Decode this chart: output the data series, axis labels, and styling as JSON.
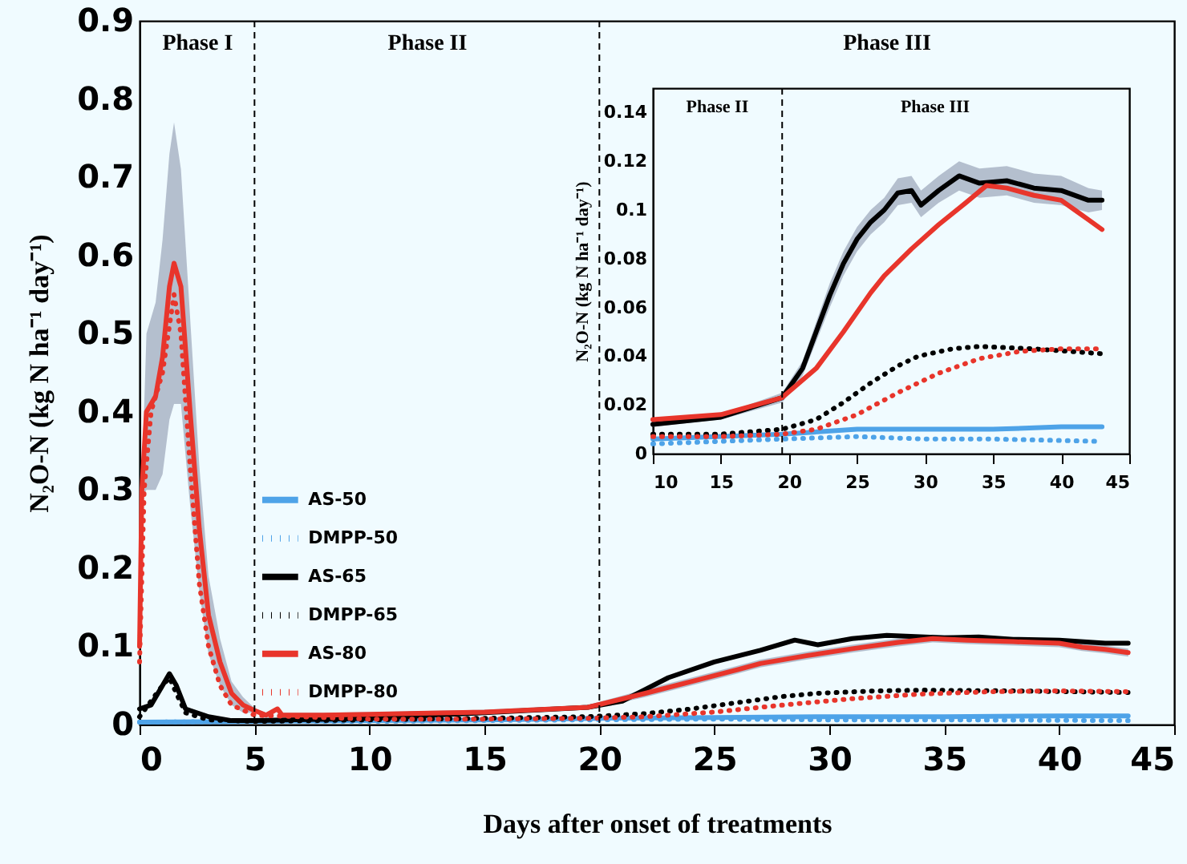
{
  "chart_data": [
    {
      "type": "line",
      "xlabel": "Days after onset of treatments",
      "ylabel": "N₂O-N  (kg N ha⁻¹ day⁻¹)",
      "xlim": [
        0,
        45
      ],
      "xticks": [
        0,
        5,
        10,
        15,
        20,
        25,
        30,
        35,
        40,
        45
      ],
      "ylim": [
        0,
        0.9
      ],
      "yticks": [
        0,
        0.1,
        0.2,
        0.3,
        0.4,
        0.5,
        0.6,
        0.7,
        0.8,
        0.9
      ],
      "legend": "left",
      "marker": "none",
      "ref_lines": [
        {
          "axis": "x",
          "value": 5,
          "line_style": "dashed"
        },
        {
          "axis": "x",
          "value": 20,
          "line_style": "dashed"
        }
      ],
      "annotations": [
        "Phase I",
        "Phase II",
        "Phase III"
      ],
      "series": [
        {
          "name": "AS-50",
          "color": "#4ea3e8",
          "line_style": "solid",
          "x": [
            0,
            5,
            10,
            15,
            20,
            25,
            30,
            35,
            40,
            43
          ],
          "values": [
            0.003,
            0.004,
            0.005,
            0.006,
            0.008,
            0.009,
            0.01,
            0.01,
            0.011,
            0.011
          ]
        },
        {
          "name": "DMPP-50",
          "color": "#4ea3e8",
          "line_style": "dotted",
          "x": [
            0,
            5,
            10,
            19.5,
            25,
            30,
            35,
            43
          ],
          "values": [
            0.003,
            0.004,
            0.004,
            0.006,
            0.007,
            0.006,
            0.006,
            0.005
          ]
        },
        {
          "name": "AS-65",
          "color": "#000000",
          "line_style": "solid",
          "x": [
            0,
            0.5,
            1,
            1.3,
            1.6,
            2,
            3,
            4,
            5,
            10,
            15,
            19.5,
            21,
            22,
            23,
            25,
            27,
            28.5,
            29.5,
            31,
            32.5,
            35,
            36.5,
            38,
            40,
            42,
            43
          ],
          "values": [
            0.02,
            0.025,
            0.05,
            0.065,
            0.05,
            0.02,
            0.01,
            0.005,
            0.005,
            0.008,
            0.015,
            0.022,
            0.03,
            0.045,
            0.06,
            0.08,
            0.095,
            0.108,
            0.102,
            0.11,
            0.114,
            0.111,
            0.112,
            0.109,
            0.108,
            0.104,
            0.104
          ]
        },
        {
          "name": "DMPP-65",
          "color": "#000000",
          "line_style": "dotted",
          "x": [
            0,
            1,
            1.3,
            1.6,
            2,
            3,
            5,
            10,
            15,
            19.5,
            22,
            24,
            26,
            28,
            29.5,
            32,
            34,
            38,
            43
          ],
          "values": [
            0.01,
            0.05,
            0.06,
            0.04,
            0.015,
            0.006,
            0.004,
            0.006,
            0.008,
            0.01,
            0.014,
            0.02,
            0.028,
            0.036,
            0.04,
            0.043,
            0.044,
            0.043,
            0.041
          ]
        },
        {
          "name": "AS-80",
          "color": "#e8352b",
          "line_style": "solid",
          "x": [
            0,
            0.1,
            0.3,
            0.7,
            1,
            1.3,
            1.5,
            1.8,
            2.2,
            2.6,
            3,
            3.5,
            4,
            4.5,
            5,
            5.5,
            6,
            6.2,
            8,
            10,
            15,
            19.5,
            22,
            24,
            26,
            27,
            29,
            31,
            33,
            34.5,
            36,
            38,
            40,
            41,
            42,
            43
          ],
          "values": [
            0.1,
            0.3,
            0.4,
            0.42,
            0.47,
            0.56,
            0.59,
            0.56,
            0.4,
            0.25,
            0.14,
            0.08,
            0.04,
            0.025,
            0.018,
            0.012,
            0.02,
            0.012,
            0.012,
            0.013,
            0.016,
            0.022,
            0.04,
            0.055,
            0.07,
            0.078,
            0.088,
            0.097,
            0.105,
            0.11,
            0.108,
            0.106,
            0.104,
            0.099,
            0.096,
            0.092
          ],
          "lower": [
            0.09,
            0.29,
            0.3,
            0.3,
            0.32,
            0.39,
            0.41,
            0.41,
            0.28,
            0.17,
            0.09,
            0.05,
            0.025,
            0.015,
            0.015,
            0.009,
            0.017,
            0.009,
            0.009,
            0.01,
            0.013,
            0.019,
            0.035,
            0.05,
            0.065,
            0.073,
            0.083,
            0.092,
            0.1,
            0.105,
            0.103,
            0.101,
            0.099,
            0.094,
            0.091,
            0.087
          ],
          "upper": [
            0.11,
            0.31,
            0.5,
            0.54,
            0.62,
            0.73,
            0.77,
            0.71,
            0.52,
            0.33,
            0.19,
            0.11,
            0.055,
            0.035,
            0.021,
            0.015,
            0.023,
            0.015,
            0.015,
            0.016,
            0.019,
            0.025,
            0.045,
            0.06,
            0.075,
            0.083,
            0.093,
            0.102,
            0.11,
            0.115,
            0.113,
            0.111,
            0.109,
            0.104,
            0.101,
            0.097
          ]
        },
        {
          "name": "DMPP-80",
          "color": "#e8352b",
          "line_style": "dotted",
          "x": [
            0,
            0.2,
            0.5,
            1,
            1.5,
            1.8,
            2.2,
            2.6,
            3,
            3.5,
            4,
            5,
            7,
            10,
            15,
            19.5,
            22,
            25,
            28,
            31,
            34,
            37,
            40,
            43
          ],
          "values": [
            0.08,
            0.3,
            0.4,
            0.45,
            0.55,
            0.5,
            0.33,
            0.18,
            0.1,
            0.05,
            0.025,
            0.012,
            0.01,
            0.007,
            0.007,
            0.008,
            0.01,
            0.016,
            0.025,
            0.033,
            0.039,
            0.042,
            0.043,
            0.042
          ]
        }
      ]
    },
    {
      "type": "line",
      "ylabel": "N₂O-N  (kg N ha⁻¹ day⁻¹)",
      "xlim": [
        10,
        45
      ],
      "xticks": [
        10,
        15,
        20,
        25,
        30,
        35,
        40,
        45
      ],
      "ylim": [
        0,
        0.15
      ],
      "yticks": [
        0,
        0.02,
        0.04,
        0.06,
        0.08,
        0.1,
        0.12,
        0.14
      ],
      "marker": "none",
      "ref_lines": [
        {
          "axis": "x",
          "value": 19.5,
          "line_style": "dashed"
        }
      ],
      "annotations": [
        "Phase II",
        "Phase III"
      ],
      "series": [
        {
          "color": "#4ea3e8",
          "line_style": "solid",
          "x": [
            10,
            19.5,
            25,
            30,
            35,
            40,
            43
          ],
          "values": [
            0.006,
            0.008,
            0.01,
            0.01,
            0.01,
            0.011,
            0.011
          ]
        },
        {
          "color": "#4ea3e8",
          "line_style": "dotted",
          "x": [
            10,
            19.5,
            25,
            30,
            35,
            43
          ],
          "values": [
            0.004,
            0.006,
            0.007,
            0.006,
            0.006,
            0.005
          ]
        },
        {
          "color": "#000000",
          "line_style": "solid",
          "x": [
            10,
            15,
            19.5,
            21,
            22,
            23,
            24,
            25,
            26,
            27,
            28,
            29,
            29.7,
            31,
            32.5,
            34,
            36,
            38,
            40,
            42,
            43
          ],
          "values": [
            0.012,
            0.015,
            0.023,
            0.035,
            0.05,
            0.065,
            0.078,
            0.088,
            0.095,
            0.1,
            0.107,
            0.108,
            0.102,
            0.108,
            0.114,
            0.111,
            0.112,
            0.109,
            0.108,
            0.104,
            0.104
          ],
          "lower": [
            0.011,
            0.014,
            0.021,
            0.032,
            0.046,
            0.06,
            0.073,
            0.083,
            0.09,
            0.095,
            0.102,
            0.103,
            0.097,
            0.103,
            0.108,
            0.105,
            0.106,
            0.103,
            0.102,
            0.099,
            0.1
          ],
          "upper": [
            0.013,
            0.016,
            0.025,
            0.038,
            0.054,
            0.07,
            0.083,
            0.093,
            0.1,
            0.105,
            0.113,
            0.114,
            0.108,
            0.114,
            0.12,
            0.117,
            0.118,
            0.115,
            0.114,
            0.109,
            0.108
          ]
        },
        {
          "color": "#000000",
          "line_style": "dotted",
          "x": [
            10,
            15,
            19.5,
            22,
            24,
            26,
            28,
            29.5,
            32,
            34,
            38,
            43
          ],
          "values": [
            0.008,
            0.008,
            0.01,
            0.014,
            0.021,
            0.029,
            0.036,
            0.04,
            0.043,
            0.044,
            0.043,
            0.041
          ]
        },
        {
          "color": "#e8352b",
          "line_style": "solid",
          "x": [
            10,
            15,
            19.5,
            22,
            24,
            26,
            27,
            29,
            31,
            33,
            34.5,
            36,
            38,
            40,
            41,
            42,
            43
          ],
          "values": [
            0.014,
            0.016,
            0.023,
            0.035,
            0.05,
            0.066,
            0.073,
            0.084,
            0.094,
            0.103,
            0.11,
            0.109,
            0.106,
            0.104,
            0.1,
            0.096,
            0.092
          ]
        },
        {
          "color": "#e8352b",
          "line_style": "dotted",
          "x": [
            10,
            15,
            19.5,
            22,
            25,
            28,
            31,
            34,
            37,
            40,
            43
          ],
          "values": [
            0.007,
            0.007,
            0.008,
            0.01,
            0.016,
            0.025,
            0.033,
            0.039,
            0.042,
            0.043,
            0.043
          ]
        }
      ]
    }
  ]
}
